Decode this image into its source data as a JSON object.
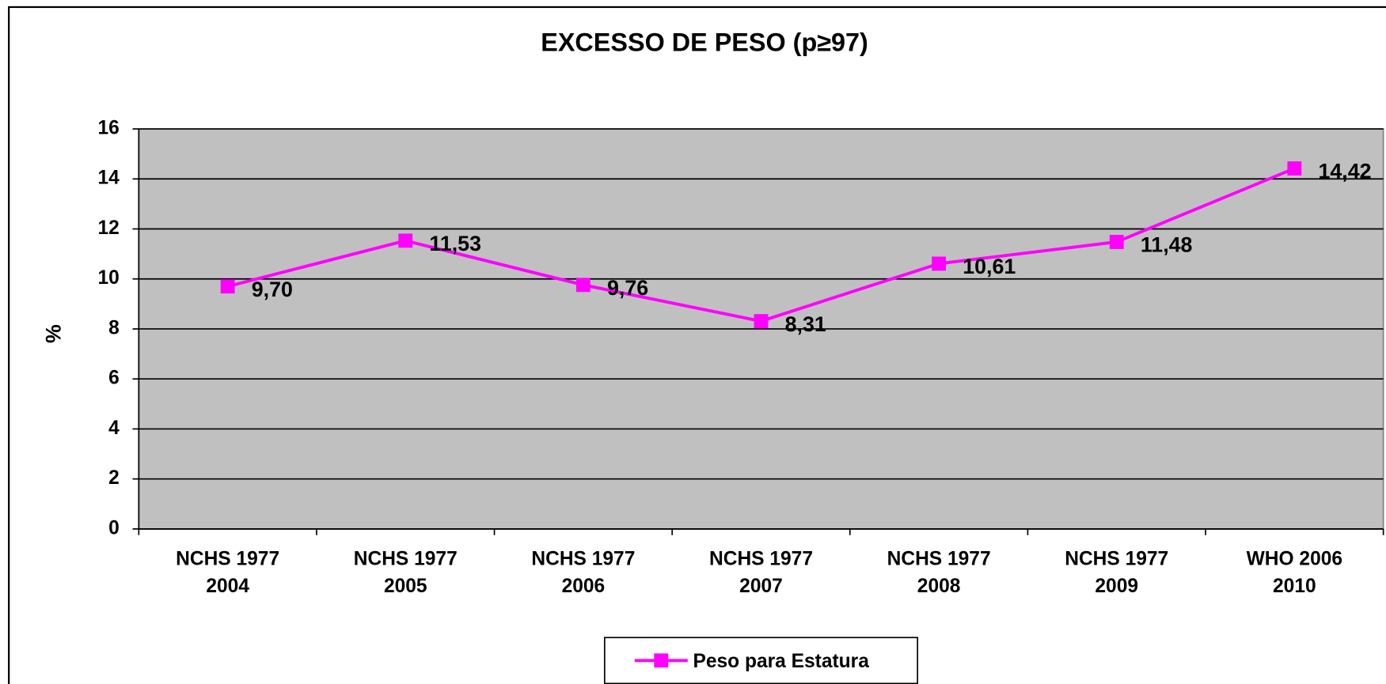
{
  "chart_data": {
    "type": "line",
    "title": "EXCESSO DE PESO (p≥97)",
    "ylabel": "%",
    "categories": [
      [
        "NCHS 1977",
        "2004"
      ],
      [
        "NCHS 1977",
        "2005"
      ],
      [
        "NCHS 1977",
        "2006"
      ],
      [
        "NCHS 1977",
        "2007"
      ],
      [
        "NCHS 1977",
        "2008"
      ],
      [
        "NCHS 1977",
        "2009"
      ],
      [
        "WHO 2006",
        "2010"
      ]
    ],
    "series": [
      {
        "name": "Peso para Estatura",
        "color": "#ff00ff",
        "values": [
          9.7,
          11.53,
          9.76,
          8.31,
          10.61,
          11.48,
          14.42
        ],
        "value_labels": [
          "9,70",
          "11,53",
          "9,76",
          "8,31",
          "10,61",
          "11,48",
          "14,42"
        ]
      }
    ],
    "ylim": [
      0,
      16
    ],
    "yticks": [
      0,
      2,
      4,
      6,
      8,
      10,
      12,
      14,
      16
    ],
    "grid": true,
    "legend": "bottom"
  }
}
